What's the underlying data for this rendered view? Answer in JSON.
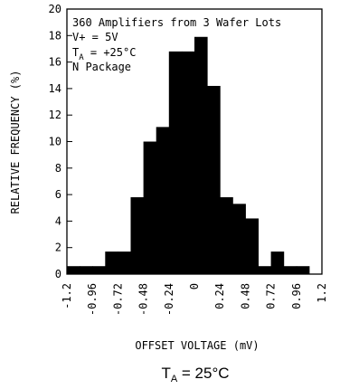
{
  "chart_data": {
    "type": "bar",
    "xlabel": "OFFSET VOLTAGE (mV)",
    "ylabel": "RELATIVE FREQUENCY (%)",
    "xlim": [
      -1.2,
      1.2
    ],
    "ylim": [
      0,
      20
    ],
    "xticks": [
      "-1.2",
      "-0.96",
      "-0.72",
      "-0.48",
      "-0.24",
      "0",
      "0.24",
      "0.48",
      "0.72",
      "0.96",
      "1.2"
    ],
    "yticks": [
      "0",
      "2",
      "4",
      "6",
      "8",
      "10",
      "12",
      "14",
      "16",
      "18",
      "20"
    ],
    "bin_width": 0.12,
    "bins": [
      {
        "start": -1.2,
        "end": -1.08,
        "value": 0.6
      },
      {
        "start": -1.08,
        "end": -0.96,
        "value": 0.6
      },
      {
        "start": -0.96,
        "end": -0.84,
        "value": 0.6
      },
      {
        "start": -0.84,
        "end": -0.72,
        "value": 1.7
      },
      {
        "start": -0.72,
        "end": -0.6,
        "value": 1.7
      },
      {
        "start": -0.6,
        "end": -0.48,
        "value": 5.8
      },
      {
        "start": -0.48,
        "end": -0.36,
        "value": 10.0
      },
      {
        "start": -0.36,
        "end": -0.24,
        "value": 11.1
      },
      {
        "start": -0.24,
        "end": -0.12,
        "value": 16.8
      },
      {
        "start": -0.12,
        "end": 0.0,
        "value": 16.8
      },
      {
        "start": 0.0,
        "end": 0.12,
        "value": 17.9
      },
      {
        "start": 0.12,
        "end": 0.24,
        "value": 14.2
      },
      {
        "start": 0.24,
        "end": 0.36,
        "value": 5.8
      },
      {
        "start": 0.36,
        "end": 0.48,
        "value": 5.3
      },
      {
        "start": 0.48,
        "end": 0.6,
        "value": 4.2
      },
      {
        "start": 0.6,
        "end": 0.72,
        "value": 0.6
      },
      {
        "start": 0.72,
        "end": 0.84,
        "value": 1.7
      },
      {
        "start": 0.84,
        "end": 0.96,
        "value": 0.6
      },
      {
        "start": 0.96,
        "end": 1.08,
        "value": 0.6
      }
    ],
    "annotations": {
      "line1": "360 Amplifiers from 3 Wafer Lots",
      "line2": "V+ = 5V",
      "line3_main": "T",
      "line3_sub": "A",
      "line3_rest": " = +25°C",
      "line4": "N Package"
    },
    "caption": {
      "main": "T",
      "sub": "A",
      "rest": " = 25°C"
    },
    "grid": false,
    "bar_color": "#000000"
  }
}
